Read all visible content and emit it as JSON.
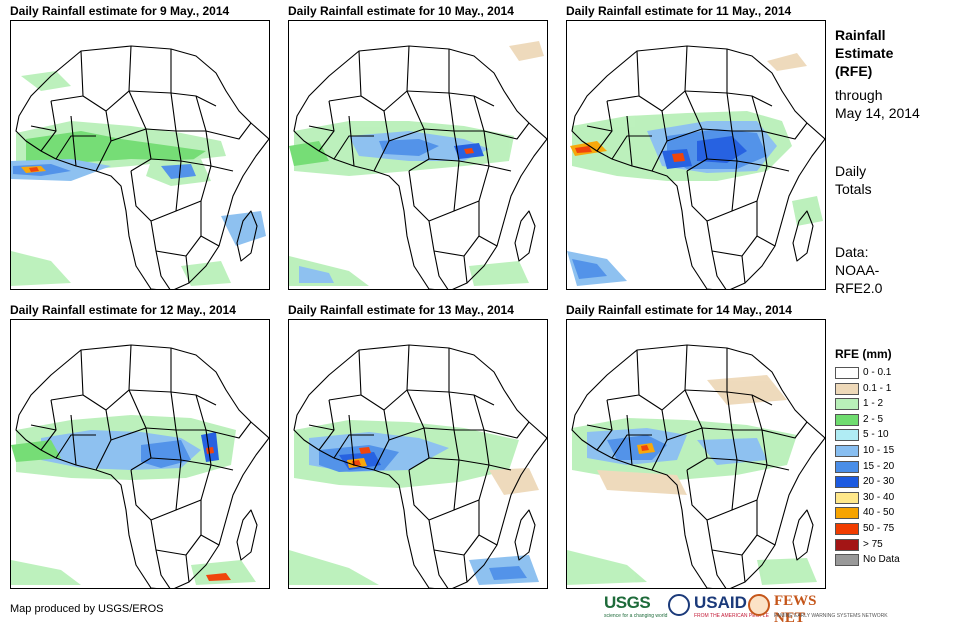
{
  "panels": [
    {
      "title": "Daily Rainfall estimate for 9 May., 2014"
    },
    {
      "title": "Daily Rainfall estimate for 10 May., 2014"
    },
    {
      "title": "Daily Rainfall estimate for 11 May., 2014"
    },
    {
      "title": "Daily Rainfall estimate for 12 May., 2014"
    },
    {
      "title": "Daily Rainfall estimate for 13 May., 2014"
    },
    {
      "title": "Daily Rainfall estimate for 14 May., 2014"
    }
  ],
  "side": {
    "title_line1": "Rainfall",
    "title_line2": "Estimate",
    "title_line3": "(RFE)",
    "through": "through",
    "through_date": "May 14, 2014",
    "daily": "Daily",
    "totals": "Totals",
    "data_label": "Data:",
    "data_source1": "NOAA-",
    "data_source2": "RFE2.0"
  },
  "legend": {
    "title": "RFE (mm)",
    "items": [
      {
        "label": "0 - 0.1",
        "color": "#ffffff"
      },
      {
        "label": "0.1 - 1",
        "color": "#eed9b9"
      },
      {
        "label": "1 - 2",
        "color": "#b9f0b9"
      },
      {
        "label": "2 - 5",
        "color": "#6fdc6f"
      },
      {
        "label": "5 - 10",
        "color": "#b0ecf4"
      },
      {
        "label": "10 - 15",
        "color": "#88bef0"
      },
      {
        "label": "15 - 20",
        "color": "#4a8ee8"
      },
      {
        "label": "20 - 30",
        "color": "#1c5ae0"
      },
      {
        "label": "30 - 40",
        "color": "#ffe88a"
      },
      {
        "label": "40 - 50",
        "color": "#f7a400"
      },
      {
        "label": "50 - 75",
        "color": "#f03c00"
      },
      {
        "label": "> 75",
        "color": "#a31515"
      },
      {
        "label": "No Data",
        "color": "#999999"
      }
    ]
  },
  "credit": "Map produced by USGS/EROS",
  "logos": {
    "usgs": "USGS",
    "usgs_tag": "science for a changing world",
    "usaid": "USAID",
    "usaid_tag": "FROM THE AMERICAN PEOPLE",
    "fews": "FEWS NET",
    "fews_tag": "FAMINE EARLY WARNING SYSTEMS NETWORK"
  }
}
